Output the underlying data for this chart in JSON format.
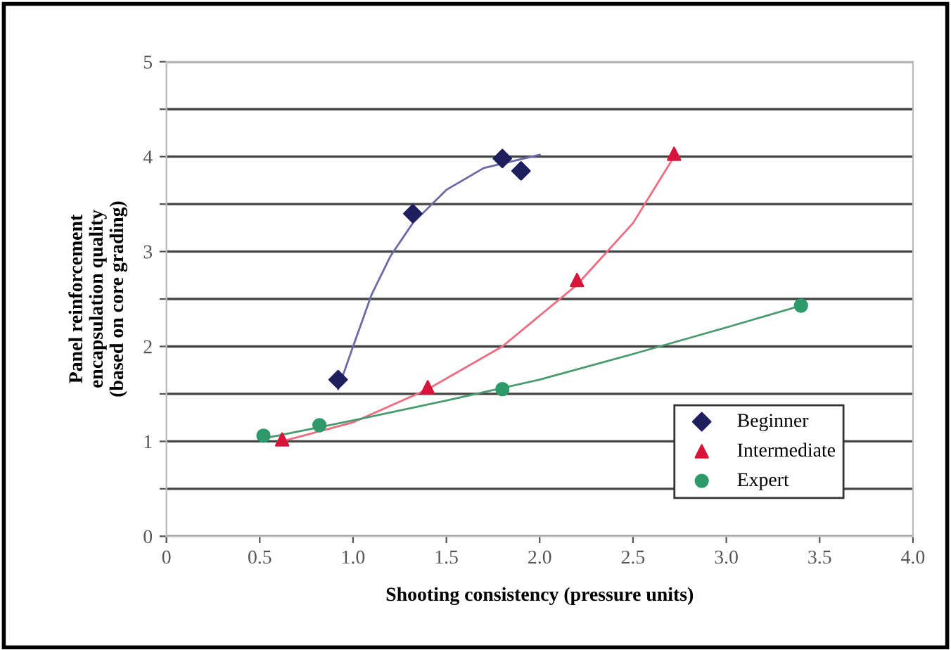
{
  "chart_data": {
    "type": "scatter",
    "xlabel": "Shooting consistency (pressure units)",
    "ylabel": "Panel reinforcement\nencapsulation quality\n(based on core grading)",
    "xlim": [
      0,
      4
    ],
    "ylim": [
      0,
      5
    ],
    "xticks": [
      0,
      0.5,
      {
        "value": 1,
        "label": "1.0"
      },
      1.5,
      {
        "value": 2,
        "label": "2.0"
      },
      2.5,
      {
        "value": 3,
        "label": "3.0"
      },
      3.5,
      {
        "value": 4,
        "label": "4.0"
      }
    ],
    "yticks": [
      0,
      {
        "value": 0.5,
        "label": null
      },
      1,
      {
        "value": 1.5,
        "label": null
      },
      2,
      {
        "value": 2.5,
        "label": null
      },
      3,
      {
        "value": 3.5,
        "label": null
      },
      4,
      {
        "value": 4.5,
        "label": null
      },
      5
    ],
    "grid": "y",
    "legend": "bottom right",
    "series": [
      {
        "name": "Beginner",
        "color": "#1f1f5e",
        "marker": "diamond",
        "x": [
          0.92,
          1.32,
          1.8,
          1.9
        ],
        "values": [
          1.65,
          3.4,
          3.98,
          3.85
        ]
      },
      {
        "name": "Intermediate",
        "color": "#d8143a",
        "marker": "triangle",
        "x": [
          0.62,
          1.4,
          2.2,
          2.72
        ],
        "values": [
          1.02,
          1.57,
          2.7,
          4.03
        ]
      },
      {
        "name": "Expert",
        "color": "#2e9a6a",
        "marker": "circle",
        "x": [
          0.52,
          0.82,
          1.8,
          3.4
        ],
        "values": [
          1.06,
          1.17,
          1.55,
          2.43
        ]
      },
      {
        "type": "line",
        "color": "#6a6aa8",
        "marker": "none",
        "x": [
          0.92,
          1.0,
          1.1,
          1.2,
          1.32,
          1.5,
          1.7,
          2.0
        ],
        "values": [
          1.55,
          2.0,
          2.55,
          2.95,
          3.3,
          3.65,
          3.88,
          4.02
        ]
      },
      {
        "type": "line",
        "color": "#f06a80",
        "marker": "none",
        "x": [
          0.62,
          1.0,
          1.4,
          1.8,
          2.2,
          2.5,
          2.72
        ],
        "values": [
          1.0,
          1.2,
          1.55,
          2.0,
          2.65,
          3.3,
          4.0
        ]
      },
      {
        "type": "line",
        "color": "#4a9a70",
        "marker": "none",
        "x": [
          0.52,
          1.0,
          1.5,
          2.0,
          2.5,
          3.0,
          3.4
        ],
        "values": [
          1.03,
          1.22,
          1.43,
          1.65,
          1.92,
          2.2,
          2.43
        ]
      }
    ]
  }
}
